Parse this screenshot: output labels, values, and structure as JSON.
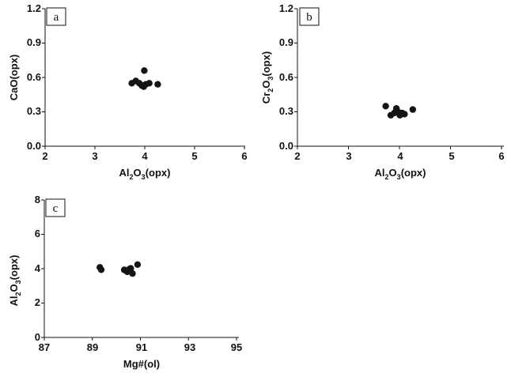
{
  "chart_data": [
    {
      "panel": "a",
      "type": "scatter",
      "xlabel": "Al2O3(opx)",
      "ylabel": "CaO(opx)",
      "xlim": [
        2,
        6
      ],
      "ylim": [
        0,
        1.2
      ],
      "xticks": [
        "2",
        "3",
        "4",
        "5",
        "6"
      ],
      "yticks": [
        "0.0",
        "0.3",
        "0.6",
        "0.9",
        "1.2"
      ],
      "points": [
        {
          "x": 3.74,
          "y": 0.55
        },
        {
          "x": 3.82,
          "y": 0.57
        },
        {
          "x": 3.89,
          "y": 0.55
        },
        {
          "x": 3.94,
          "y": 0.53
        },
        {
          "x": 3.98,
          "y": 0.52
        },
        {
          "x": 3.99,
          "y": 0.66
        },
        {
          "x": 4.02,
          "y": 0.54
        },
        {
          "x": 4.09,
          "y": 0.55
        },
        {
          "x": 4.26,
          "y": 0.54
        }
      ]
    },
    {
      "panel": "b",
      "type": "scatter",
      "xlabel": "Al2O3(opx)",
      "ylabel": "Cr2O3(opx)",
      "xlim": [
        2,
        6
      ],
      "ylim": [
        0,
        1.2
      ],
      "xticks": [
        "2",
        "3",
        "4",
        "5",
        "6"
      ],
      "yticks": [
        "0.0",
        "0.3",
        "0.6",
        "0.9",
        "1.2"
      ],
      "points": [
        {
          "x": 3.73,
          "y": 0.35
        },
        {
          "x": 3.83,
          "y": 0.27
        },
        {
          "x": 3.9,
          "y": 0.29
        },
        {
          "x": 3.94,
          "y": 0.33
        },
        {
          "x": 3.97,
          "y": 0.3
        },
        {
          "x": 4.01,
          "y": 0.27
        },
        {
          "x": 4.05,
          "y": 0.29
        },
        {
          "x": 4.1,
          "y": 0.28
        },
        {
          "x": 4.26,
          "y": 0.32
        }
      ]
    },
    {
      "panel": "c",
      "type": "scatter",
      "xlabel": "Mg#(ol)",
      "ylabel": "Al2O3(opx)",
      "xlim": [
        87,
        95
      ],
      "ylim": [
        0,
        8
      ],
      "xticks": [
        "87",
        "89",
        "91",
        "93",
        "95"
      ],
      "yticks": [
        "0",
        "2",
        "4",
        "6",
        "8"
      ],
      "points": [
        {
          "x": 89.31,
          "y": 4.08
        },
        {
          "x": 89.37,
          "y": 3.94
        },
        {
          "x": 90.33,
          "y": 3.93
        },
        {
          "x": 90.45,
          "y": 3.82
        },
        {
          "x": 90.55,
          "y": 3.98
        },
        {
          "x": 90.6,
          "y": 4.02
        },
        {
          "x": 90.67,
          "y": 3.72
        },
        {
          "x": 90.88,
          "y": 4.24
        }
      ]
    }
  ]
}
